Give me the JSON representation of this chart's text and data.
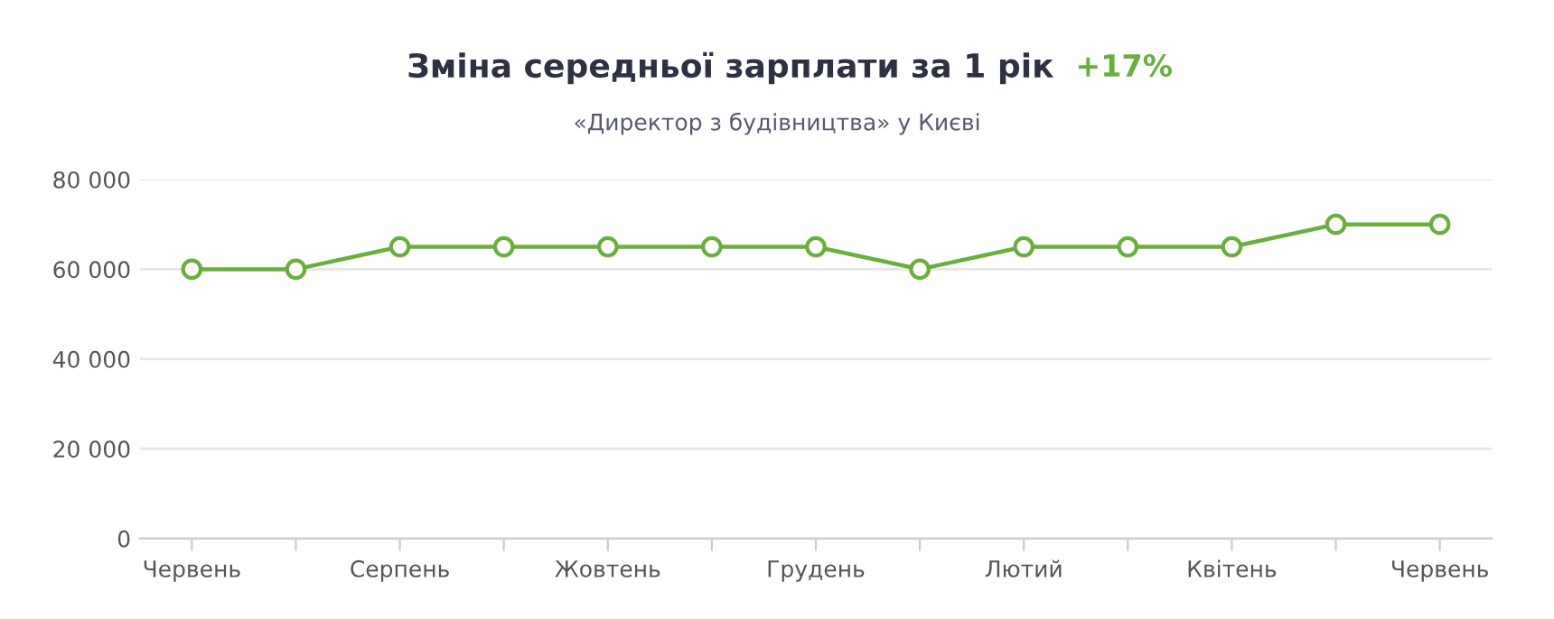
{
  "chart_data": {
    "type": "line",
    "title": "Зміна середньої зарплати за 1 рік",
    "subtitle": "«Директор з будівництва» у Києві",
    "annotations": [
      "+17%"
    ],
    "categories": [
      "Червень",
      null,
      "Серпень",
      null,
      "Жовтень",
      null,
      "Грудень",
      null,
      "Лютий",
      null,
      "Квітень",
      null,
      "Червень"
    ],
    "series": [
      {
        "color": "#6aaf3d",
        "values": [
          60000,
          60000,
          65000,
          65000,
          65000,
          65000,
          65000,
          60000,
          65000,
          65000,
          65000,
          70000,
          70000
        ]
      }
    ],
    "ylim": [
      0,
      80000
    ],
    "yticks": [
      {
        "value": 0,
        "label": "0"
      },
      {
        "value": 20000,
        "label": "20 000"
      },
      {
        "value": 40000,
        "label": "40 000"
      },
      {
        "value": 60000,
        "label": "60 000"
      },
      {
        "value": 80000,
        "label": "80 000"
      }
    ],
    "grid": "y",
    "legend": false,
    "marker": "circle",
    "line_style": "solid"
  }
}
